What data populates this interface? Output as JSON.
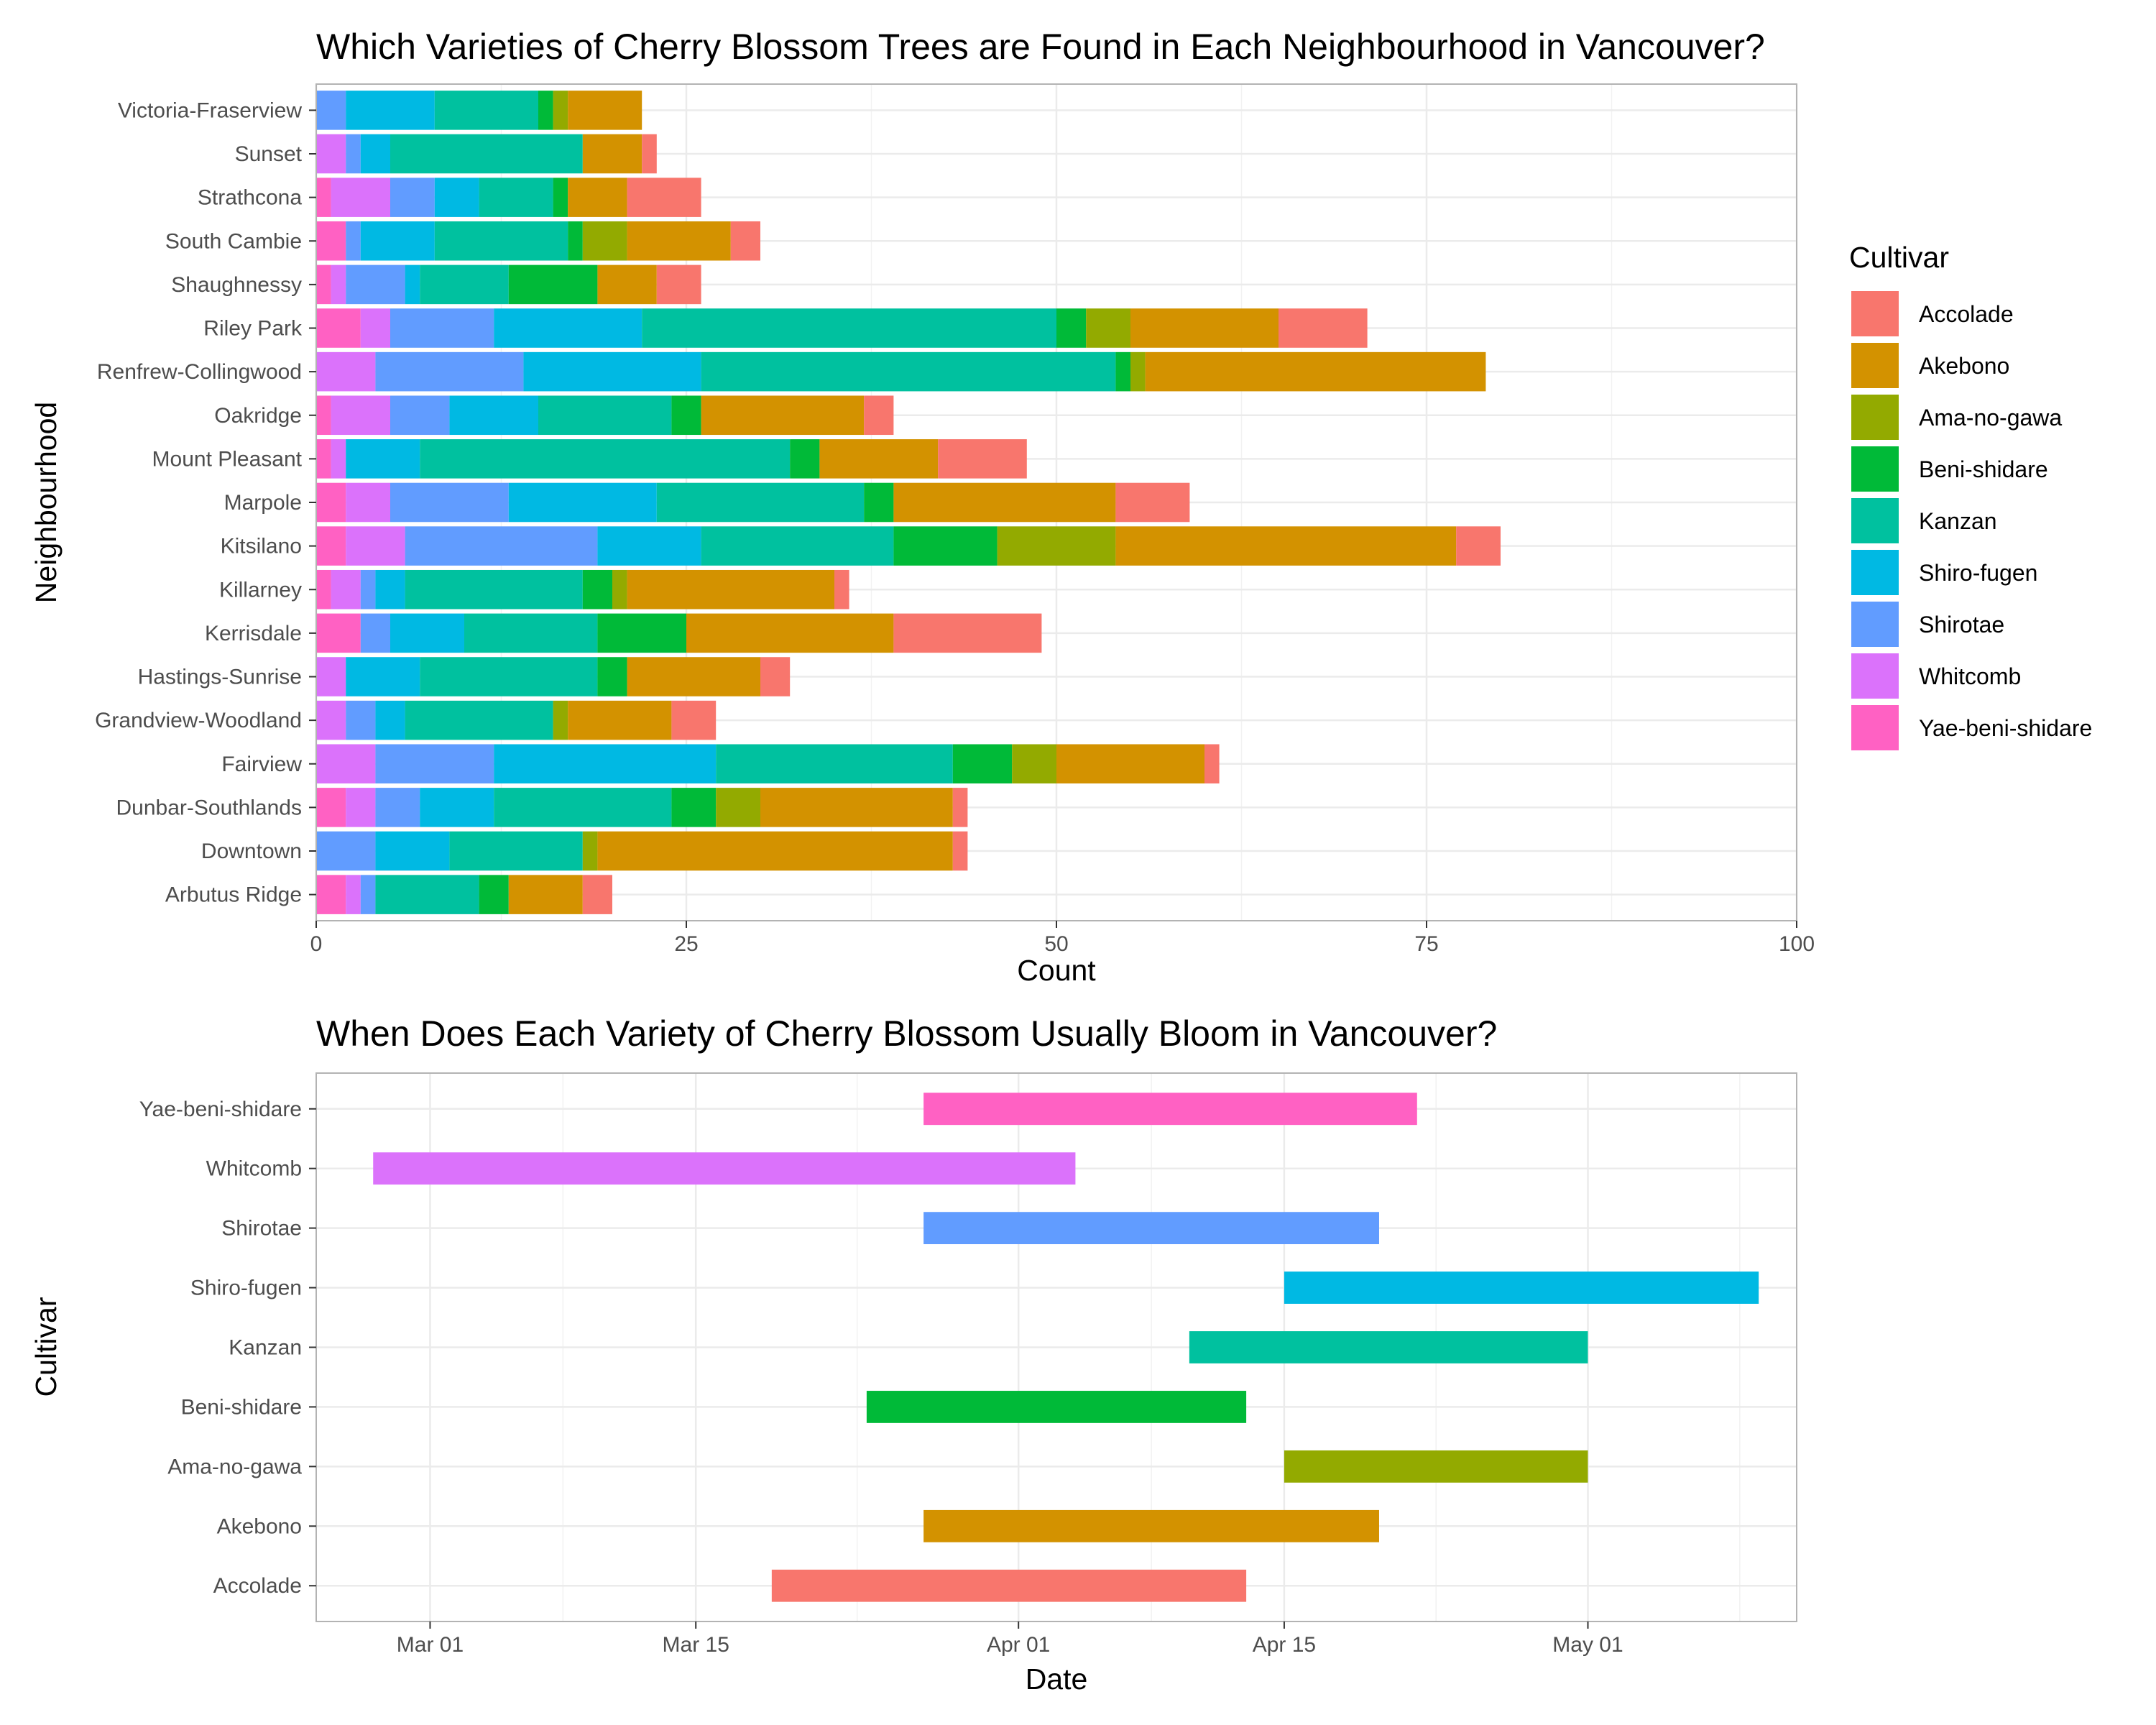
{
  "chart_data": [
    {
      "type": "bar",
      "orientation": "horizontal",
      "stacked": true,
      "title": "Which Varieties of Cherry Blossom Trees are Found in Each Neighbourhood in Vancouver?",
      "xlabel": "Count",
      "ylabel": "Neighbourhood",
      "xlim": [
        0,
        100
      ],
      "xticks": [
        "0",
        "25",
        "50",
        "75",
        "100"
      ],
      "grid": true,
      "legend": {
        "title": "Cultivar",
        "placement": "right"
      },
      "categories": [
        "Arbutus Ridge",
        "Downtown",
        "Dunbar-Southlands",
        "Fairview",
        "Grandview-Woodland",
        "Hastings-Sunrise",
        "Kerrisdale",
        "Killarney",
        "Kitsilano",
        "Marpole",
        "Mount Pleasant",
        "Oakridge",
        "Renfrew-Collingwood",
        "Riley Park",
        "Shaughnessy",
        "South Cambie",
        "Strathcona",
        "Sunset",
        "Victoria-Fraserview"
      ],
      "series": [
        {
          "name": "Yae-beni-shidare",
          "color": "#FF61C3",
          "values": [
            2,
            0,
            2,
            0,
            0,
            0,
            3,
            1,
            2,
            2,
            1,
            1,
            0,
            3,
            1,
            2,
            1,
            0,
            0
          ]
        },
        {
          "name": "Whitcomb",
          "color": "#DB72FB",
          "values": [
            1,
            0,
            2,
            4,
            2,
            2,
            0,
            2,
            4,
            3,
            1,
            4,
            4,
            2,
            1,
            0,
            4,
            2,
            0
          ]
        },
        {
          "name": "Shirotae",
          "color": "#619CFF",
          "values": [
            1,
            4,
            3,
            8,
            2,
            0,
            2,
            1,
            13,
            8,
            0,
            4,
            10,
            7,
            4,
            1,
            3,
            1,
            2
          ]
        },
        {
          "name": "Shiro-fugen",
          "color": "#00B9E3",
          "values": [
            0,
            5,
            5,
            15,
            2,
            5,
            5,
            2,
            7,
            10,
            5,
            6,
            12,
            10,
            1,
            5,
            3,
            2,
            6
          ]
        },
        {
          "name": "Kanzan",
          "color": "#00C19F",
          "values": [
            7,
            9,
            12,
            16,
            10,
            12,
            9,
            12,
            13,
            14,
            25,
            9,
            28,
            28,
            6,
            9,
            5,
            13,
            7
          ]
        },
        {
          "name": "Beni-shidare",
          "color": "#00BA38",
          "values": [
            2,
            0,
            3,
            4,
            0,
            2,
            6,
            2,
            7,
            2,
            2,
            2,
            1,
            2,
            6,
            1,
            1,
            0,
            1
          ]
        },
        {
          "name": "Ama-no-gawa",
          "color": "#93AA00",
          "values": [
            0,
            1,
            3,
            3,
            1,
            0,
            0,
            1,
            8,
            0,
            0,
            0,
            1,
            3,
            0,
            3,
            0,
            0,
            1
          ]
        },
        {
          "name": "Akebono",
          "color": "#D39200",
          "values": [
            5,
            24,
            13,
            10,
            7,
            9,
            14,
            14,
            23,
            15,
            8,
            11,
            23,
            10,
            4,
            7,
            4,
            4,
            5
          ]
        },
        {
          "name": "Accolade",
          "color": "#F8766D",
          "values": [
            2,
            1,
            1,
            1,
            3,
            2,
            10,
            1,
            3,
            5,
            6,
            2,
            0,
            6,
            3,
            2,
            5,
            1,
            0
          ]
        }
      ]
    },
    {
      "type": "gantt",
      "title": "When Does Each Variety of Cherry Blossom Usually Bloom in Vancouver?",
      "xlabel": "Date",
      "ylabel": "Cultivar",
      "xlim": [
        "2021-02-23",
        "2021-05-12"
      ],
      "xticks": [
        {
          "label": "Mar 01",
          "date": "2021-03-01"
        },
        {
          "label": "Mar 15",
          "date": "2021-03-15"
        },
        {
          "label": "Apr 01",
          "date": "2021-04-01"
        },
        {
          "label": "Apr 15",
          "date": "2021-04-15"
        },
        {
          "label": "May 01",
          "date": "2021-05-01"
        }
      ],
      "grid": true,
      "rows": [
        {
          "name": "Accolade",
          "color": "#F8766D",
          "start": "2021-03-19",
          "end": "2021-04-13"
        },
        {
          "name": "Akebono",
          "color": "#D39200",
          "start": "2021-03-27",
          "end": "2021-04-20"
        },
        {
          "name": "Ama-no-gawa",
          "color": "#93AA00",
          "start": "2021-04-15",
          "end": "2021-05-01"
        },
        {
          "name": "Beni-shidare",
          "color": "#00BA38",
          "start": "2021-03-24",
          "end": "2021-04-13"
        },
        {
          "name": "Kanzan",
          "color": "#00C19F",
          "start": "2021-04-10",
          "end": "2021-05-01"
        },
        {
          "name": "Shiro-fugen",
          "color": "#00B9E3",
          "start": "2021-04-15",
          "end": "2021-05-10"
        },
        {
          "name": "Shirotae",
          "color": "#619CFF",
          "start": "2021-03-27",
          "end": "2021-04-20"
        },
        {
          "name": "Whitcomb",
          "color": "#DB72FB",
          "start": "2021-02-26",
          "end": "2021-04-04"
        },
        {
          "name": "Yae-beni-shidare",
          "color": "#FF61C3",
          "start": "2021-03-27",
          "end": "2021-04-22"
        }
      ]
    }
  ]
}
